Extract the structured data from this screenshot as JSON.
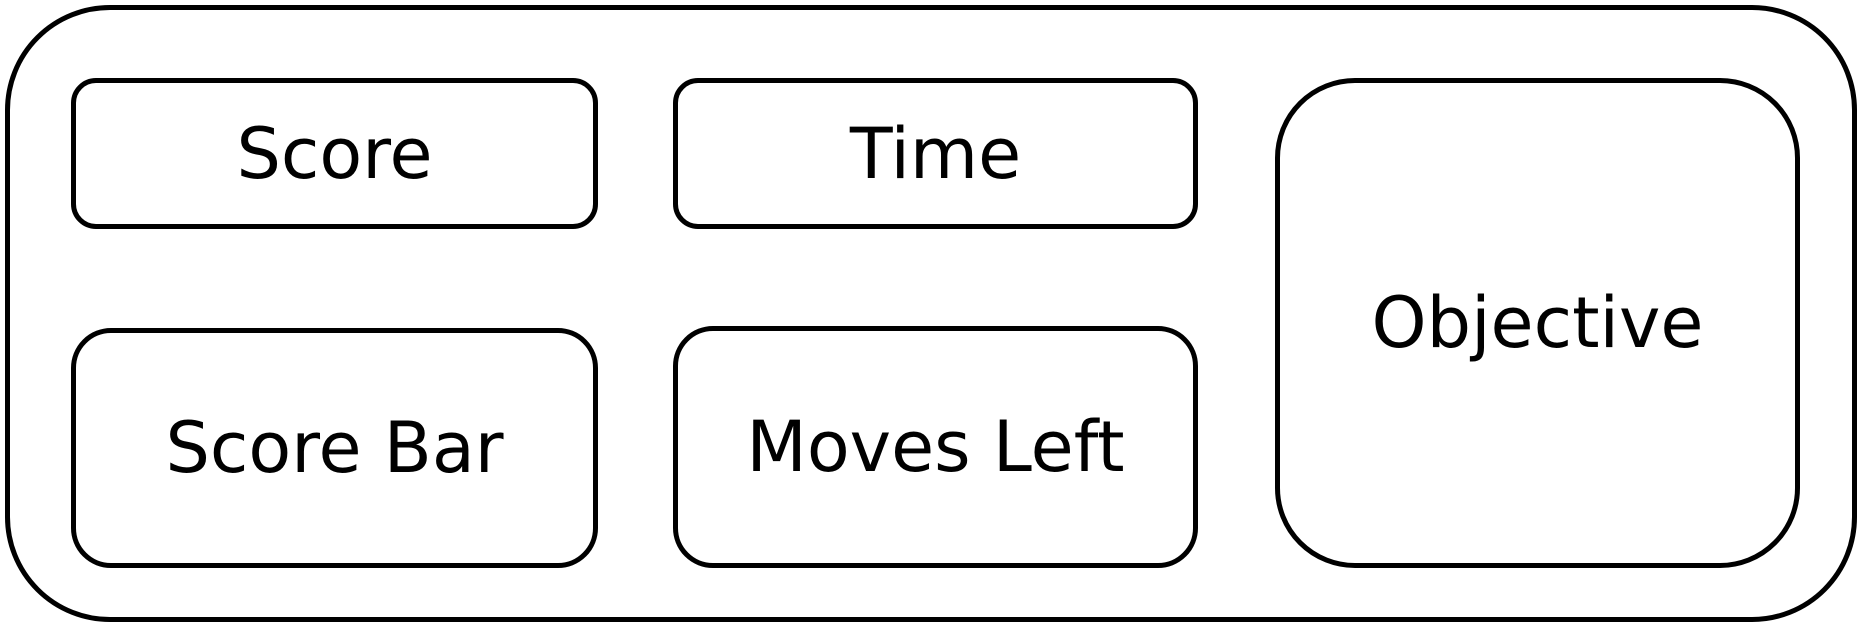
{
  "diagram": {
    "panels": {
      "score": "Score",
      "time": "Time",
      "score_bar": "Score Bar",
      "moves_left": "Moves Left",
      "objective": "Objective"
    }
  }
}
